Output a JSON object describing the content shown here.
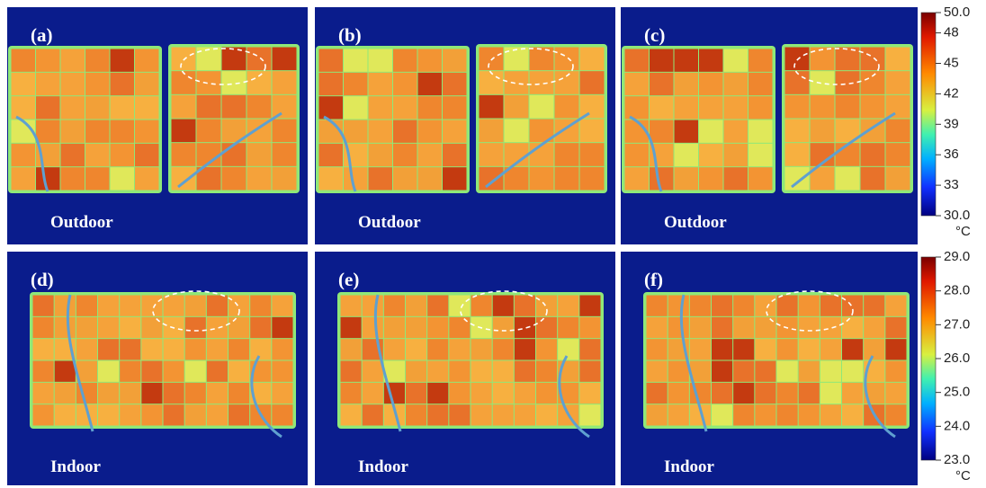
{
  "panels": [
    {
      "label": "(a)",
      "condition": "Outdoor"
    },
    {
      "label": "(b)",
      "condition": "Outdoor"
    },
    {
      "label": "(c)",
      "condition": "Outdoor"
    },
    {
      "label": "(d)",
      "condition": "Indoor"
    },
    {
      "label": "(e)",
      "condition": "Indoor"
    },
    {
      "label": "(f)",
      "condition": "Indoor"
    }
  ],
  "colorbars": [
    {
      "ylim": [
        30,
        50
      ],
      "ticks": [
        {
          "value": 50,
          "label": "50.0"
        },
        48,
        45,
        42,
        39,
        36,
        33,
        {
          "value": 30,
          "label": "30.0"
        }
      ],
      "unit": "°C"
    },
    {
      "ylim": [
        23,
        29
      ],
      "ticks": [
        {
          "value": 29,
          "label": "29.0"
        },
        {
          "value": 28,
          "label": "28.0"
        },
        {
          "value": 27,
          "label": "27.0"
        },
        {
          "value": 26,
          "label": "26.0"
        },
        {
          "value": 25,
          "label": "25.0"
        },
        {
          "value": 24,
          "label": "24.0"
        },
        {
          "value": 23,
          "label": "23.0"
        }
      ],
      "unit": "°C"
    }
  ]
}
